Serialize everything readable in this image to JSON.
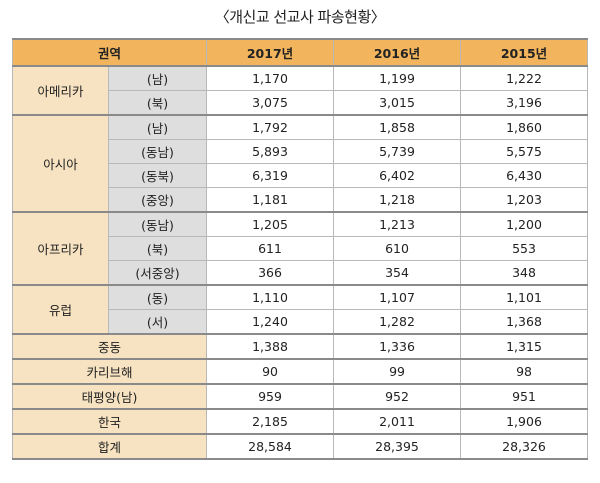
{
  "title": "〈개신교 선교사 파송현황〉",
  "headers": {
    "region": "권역",
    "y2017": "2017년",
    "y2016": "2016년",
    "y2015": "2015년"
  },
  "groups": [
    {
      "region": "아메리카",
      "rows": [
        {
          "sub": "(남)",
          "v": [
            "1,170",
            "1,199",
            "1,222"
          ]
        },
        {
          "sub": "(북)",
          "v": [
            "3,075",
            "3,015",
            "3,196"
          ]
        }
      ]
    },
    {
      "region": "아시아",
      "rows": [
        {
          "sub": "(남)",
          "v": [
            "1,792",
            "1,858",
            "1,860"
          ]
        },
        {
          "sub": "(동남)",
          "v": [
            "5,893",
            "5,739",
            "5,575"
          ]
        },
        {
          "sub": "(동북)",
          "v": [
            "6,319",
            "6,402",
            "6,430"
          ]
        },
        {
          "sub": "(중앙)",
          "v": [
            "1,181",
            "1,218",
            "1,203"
          ]
        }
      ]
    },
    {
      "region": "아프리카",
      "rows": [
        {
          "sub": "(동남)",
          "v": [
            "1,205",
            "1,213",
            "1,200"
          ]
        },
        {
          "sub": "(북)",
          "v": [
            "611",
            "610",
            "553"
          ]
        },
        {
          "sub": "(서중앙)",
          "v": [
            "366",
            "354",
            "348"
          ]
        }
      ]
    },
    {
      "region": "유럽",
      "rows": [
        {
          "sub": "(동)",
          "v": [
            "1,110",
            "1,107",
            "1,101"
          ]
        },
        {
          "sub": "(서)",
          "v": [
            "1,240",
            "1,282",
            "1,368"
          ]
        }
      ]
    }
  ],
  "singles": [
    {
      "region": "중동",
      "v": [
        "1,388",
        "1,336",
        "1,315"
      ]
    },
    {
      "region": "카리브해",
      "v": [
        "90",
        "99",
        "98"
      ]
    },
    {
      "region": "태평양(남)",
      "v": [
        "959",
        "952",
        "951"
      ]
    },
    {
      "region": "한국",
      "v": [
        "2,185",
        "2,011",
        "1,906"
      ]
    },
    {
      "region": "합계",
      "v": [
        "28,584",
        "28,395",
        "28,326"
      ]
    }
  ]
}
